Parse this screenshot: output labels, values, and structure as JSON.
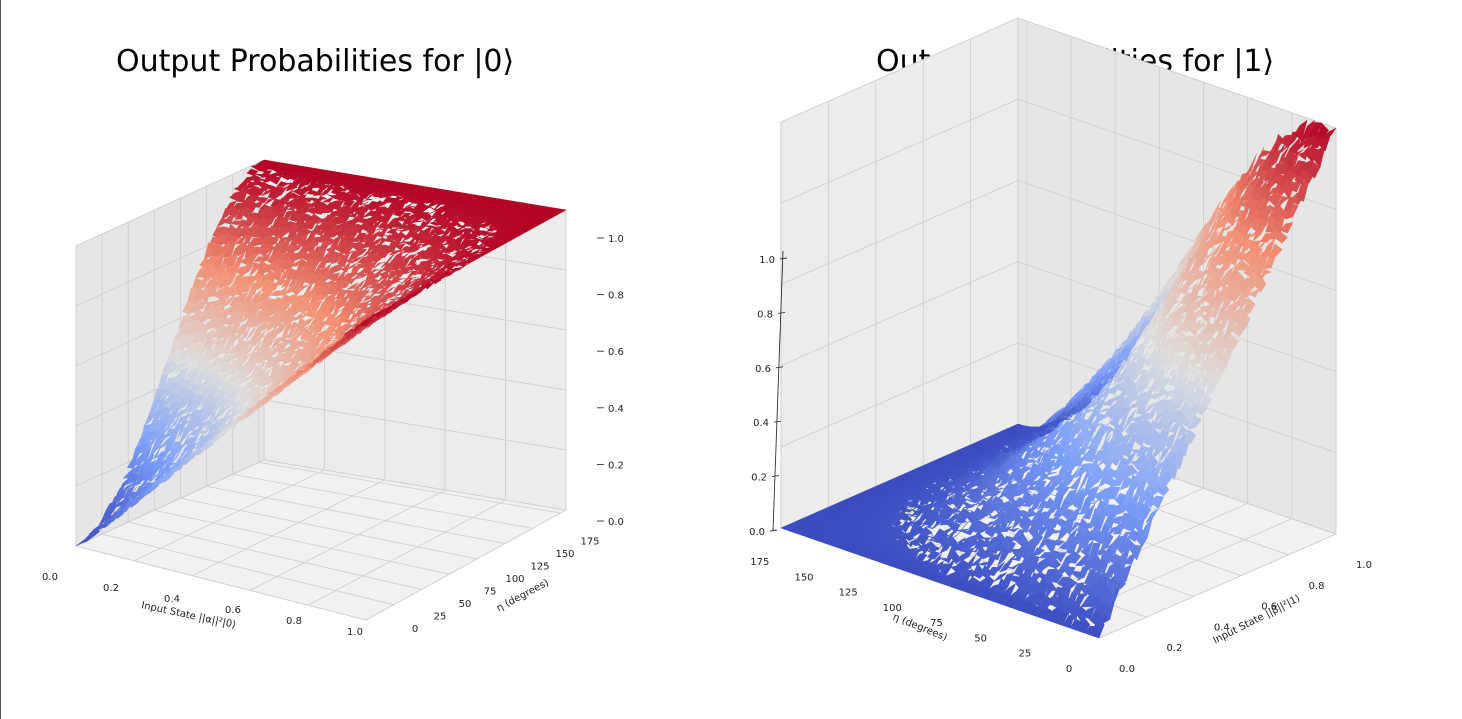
{
  "chart_data": [
    {
      "type": "surface",
      "title": "Output Probabilities for |0⟩",
      "xlabel": "Input State ||α||²|0⟩",
      "ylabel": "η (degrees)",
      "zlabel": "",
      "xlim": [
        0,
        1
      ],
      "ylim": [
        0,
        180
      ],
      "zlim": [
        0,
        1
      ],
      "x_ticks": [
        "0.0",
        "0.2",
        "0.4",
        "0.6",
        "0.8",
        "1.0"
      ],
      "y_ticks": [
        "0",
        "25",
        "50",
        "75",
        "100",
        "125",
        "150",
        "175"
      ],
      "z_ticks": [
        "0.0",
        "0.2",
        "0.4",
        "0.6",
        "0.8",
        "1.0"
      ],
      "grid": true,
      "colormap": "coolwarm",
      "surface_samples": {
        "eta": [
          0,
          45,
          90,
          135,
          180
        ],
        "x": [
          0.0,
          0.25,
          0.5,
          0.75,
          1.0
        ],
        "z": [
          [
            0.0,
            0.25,
            0.5,
            0.75,
            1.0
          ],
          [
            0.15,
            0.36,
            0.57,
            0.79,
            1.0
          ],
          [
            0.5,
            0.62,
            0.75,
            0.87,
            1.0
          ],
          [
            0.85,
            0.89,
            0.93,
            0.96,
            1.0
          ],
          [
            1.0,
            1.0,
            1.0,
            1.0,
            1.0
          ]
        ]
      }
    },
    {
      "type": "surface",
      "title": "Output Probabilities for |1⟩",
      "xlabel": "Input State ||β||²|1⟩",
      "ylabel": "η (degrees)",
      "zlabel": "",
      "xlim": [
        0,
        1
      ],
      "ylim": [
        0,
        180
      ],
      "zlim": [
        0,
        1
      ],
      "x_ticks": [
        "0.0",
        "0.2",
        "0.4",
        "0.6",
        "0.8",
        "1.0"
      ],
      "y_ticks": [
        "0",
        "25",
        "50",
        "75",
        "100",
        "125",
        "150",
        "175"
      ],
      "z_ticks": [
        "0.0",
        "0.2",
        "0.4",
        "0.6",
        "0.8",
        "1.0"
      ],
      "grid": true,
      "colormap": "coolwarm",
      "surface_samples": {
        "eta": [
          0,
          45,
          90,
          135,
          180
        ],
        "x": [
          0.0,
          0.25,
          0.5,
          0.75,
          1.0
        ],
        "z": [
          [
            0.0,
            0.25,
            0.5,
            0.75,
            1.0
          ],
          [
            0.0,
            0.21,
            0.43,
            0.64,
            0.85
          ],
          [
            0.0,
            0.12,
            0.25,
            0.37,
            0.5
          ],
          [
            0.0,
            0.04,
            0.07,
            0.11,
            0.15
          ],
          [
            0.0,
            0.0,
            0.0,
            0.0,
            0.0
          ]
        ]
      }
    }
  ]
}
